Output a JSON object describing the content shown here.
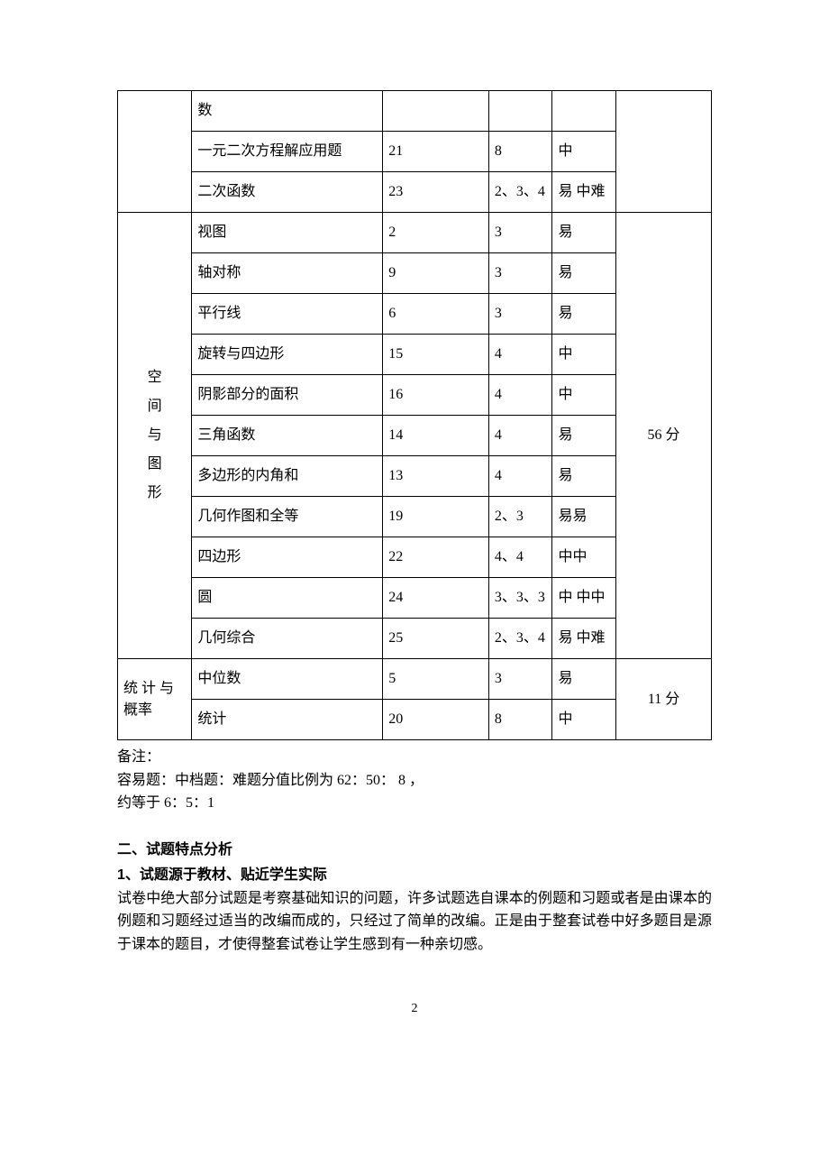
{
  "table": {
    "group1_rows": [
      {
        "topic": "数",
        "q": "",
        "pts": "",
        "diff": ""
      },
      {
        "topic": "一元二次方程解应用题",
        "q": "21",
        "pts": "8",
        "diff": "中"
      },
      {
        "topic": "二次函数",
        "q": "23",
        "pts": "2、3、4",
        "diff": "易 中难"
      }
    ],
    "group2_label": "空间与图形",
    "group2_total": "56 分",
    "group2_rows": [
      {
        "topic": "视图",
        "q": "2",
        "pts": "3",
        "diff": "易"
      },
      {
        "topic": "轴对称",
        "q": "9",
        "pts": "3",
        "diff": "易"
      },
      {
        "topic": "平行线",
        "q": "6",
        "pts": "3",
        "diff": "易"
      },
      {
        "topic": "旋转与四边形",
        "q": "15",
        "pts": "4",
        "diff": "中"
      },
      {
        "topic": "阴影部分的面积",
        "q": "16",
        "pts": "4",
        "diff": "中"
      },
      {
        "topic": "三角函数",
        "q": "14",
        "pts": "4",
        "diff": "易"
      },
      {
        "topic": "多边形的内角和",
        "q": "13",
        "pts": "4",
        "diff": "易"
      },
      {
        "topic": "几何作图和全等",
        "q": "19",
        "pts": "2、3",
        "diff": "易易"
      },
      {
        "topic": "四边形",
        "q": "22",
        "pts": "4、4",
        "diff": "中中"
      },
      {
        "topic": "圆",
        "q": "24",
        "pts": "3、3、3",
        "diff": "中 中中"
      },
      {
        "topic": "几何综合",
        "q": "25",
        "pts": "2、3、4",
        "diff": "易 中难"
      }
    ],
    "group3_label": "统 计 与 概率",
    "group3_total": "11 分",
    "group3_rows": [
      {
        "topic": "中位数",
        "q": "5",
        "pts": "3",
        "diff": "易"
      },
      {
        "topic": "统计",
        "q": "20",
        "pts": "8",
        "diff": "中"
      }
    ],
    "group2_vertical_chars": [
      "空",
      "间",
      "与",
      "图",
      "形"
    ]
  },
  "notes": {
    "label": "备注：",
    "line1": "容易题：中档题：难题分值比例为 62：50： 8 ，",
    "line2": "约等于 6：5：1"
  },
  "section2": {
    "heading": "二、试题特点分析",
    "sub": "1、试题源于教材、贴近学生实际",
    "para": "试卷中绝大部分试题是考察基础知识的问题，许多试题选自课本的例题和习题或者是由课本的例题和习题经过适当的改编而成的，只经过了简单的改编。正是由于整套试卷中好多题目是源于课本的题目，才使得整套试卷让学生感到有一种亲切感。"
  },
  "page_number": "2"
}
